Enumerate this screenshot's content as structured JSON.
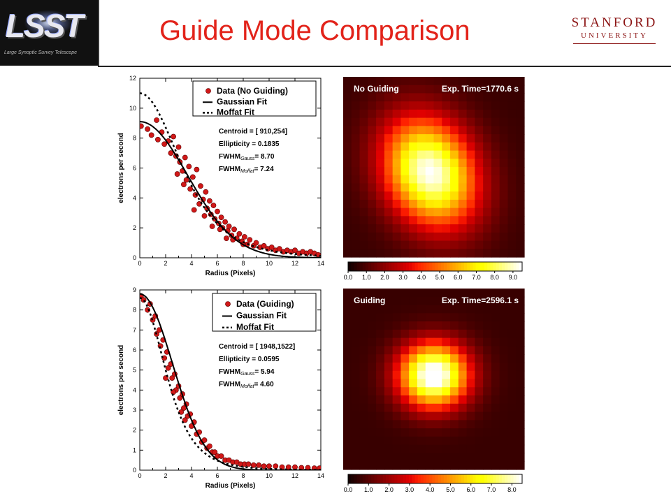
{
  "title": "Guide Mode Comparison",
  "logo": {
    "main": "LSST",
    "sub": "Large Synoptic Survey Telescope"
  },
  "university": {
    "line1": "STANFORD",
    "line2": "UNIVERSITY"
  },
  "colors": {
    "title": "#e2231a",
    "stanford": "#8c1515",
    "points": "#d01818"
  },
  "chart_data": [
    {
      "type": "scatter",
      "xlabel": "Radius (Pixels)",
      "ylabel": "electrons per second",
      "xlim": [
        0,
        14
      ],
      "ylim": [
        0,
        12
      ],
      "xticks": [
        0,
        2,
        4,
        6,
        8,
        10,
        12,
        14
      ],
      "yticks": [
        0,
        2,
        4,
        6,
        8,
        10,
        12
      ],
      "legend": [
        "Data (No Guiding)",
        "Gaussian Fit",
        "Moffat Fit"
      ],
      "legend_position": "top-right",
      "annotations": [
        {
          "label": "Centroid = [ 910,254]"
        },
        {
          "label": "Ellipticity = 0.1835"
        },
        {
          "prefix": "FWHM",
          "sub": "Gauss",
          "value": "= 8.70"
        },
        {
          "prefix": "FWHM",
          "sub": "Moffat",
          "value": "= 7.24"
        }
      ],
      "gaussian": {
        "amplitude": 9.1,
        "fwhm": 8.7
      },
      "moffat": {
        "amplitude": 11.0,
        "fwhm": 7.24,
        "beta": 2.5
      },
      "scatter_points": [
        [
          0.1,
          8.8
        ],
        [
          0.6,
          8.6
        ],
        [
          0.9,
          8.2
        ],
        [
          1.3,
          9.2
        ],
        [
          1.4,
          7.9
        ],
        [
          1.7,
          8.4
        ],
        [
          1.9,
          7.6
        ],
        [
          2.2,
          7.8
        ],
        [
          2.4,
          7.0
        ],
        [
          2.6,
          8.1
        ],
        [
          2.8,
          6.8
        ],
        [
          3.0,
          7.4
        ],
        [
          3.1,
          6.4
        ],
        [
          3.3,
          5.8
        ],
        [
          3.5,
          6.7
        ],
        [
          3.6,
          5.2
        ],
        [
          3.8,
          6.1
        ],
        [
          3.9,
          4.6
        ],
        [
          4.1,
          5.4
        ],
        [
          4.3,
          4.2
        ],
        [
          4.4,
          5.9
        ],
        [
          4.6,
          3.6
        ],
        [
          4.7,
          4.8
        ],
        [
          4.9,
          3.9
        ],
        [
          5.1,
          4.4
        ],
        [
          5.2,
          3.3
        ],
        [
          5.4,
          3.8
        ],
        [
          5.5,
          2.9
        ],
        [
          5.7,
          3.5
        ],
        [
          5.8,
          2.6
        ],
        [
          6.0,
          3.1
        ],
        [
          6.1,
          2.3
        ],
        [
          6.3,
          2.7
        ],
        [
          6.4,
          2.0
        ],
        [
          6.6,
          2.4
        ],
        [
          6.8,
          1.8
        ],
        [
          6.9,
          2.1
        ],
        [
          7.1,
          1.5
        ],
        [
          7.3,
          1.9
        ],
        [
          7.5,
          1.3
        ],
        [
          7.7,
          1.6
        ],
        [
          7.9,
          1.1
        ],
        [
          8.1,
          1.4
        ],
        [
          8.3,
          0.9
        ],
        [
          8.5,
          1.2
        ],
        [
          8.8,
          0.8
        ],
        [
          9.0,
          1.0
        ],
        [
          9.3,
          0.7
        ],
        [
          9.6,
          0.8
        ],
        [
          9.9,
          0.6
        ],
        [
          10.2,
          0.7
        ],
        [
          10.5,
          0.5
        ],
        [
          10.8,
          0.6
        ],
        [
          11.1,
          0.4
        ],
        [
          11.4,
          0.5
        ],
        [
          11.7,
          0.4
        ],
        [
          12.0,
          0.5
        ],
        [
          12.3,
          0.3
        ],
        [
          12.6,
          0.4
        ],
        [
          12.9,
          0.3
        ],
        [
          13.2,
          0.4
        ],
        [
          13.5,
          0.3
        ],
        [
          13.8,
          0.2
        ],
        [
          4.2,
          3.2
        ],
        [
          5.0,
          2.8
        ],
        [
          5.6,
          2.1
        ],
        [
          6.2,
          1.9
        ],
        [
          6.7,
          1.3
        ],
        [
          7.2,
          1.2
        ],
        [
          8.0,
          0.9
        ],
        [
          3.4,
          4.9
        ],
        [
          2.9,
          5.6
        ]
      ]
    },
    {
      "type": "scatter",
      "xlabel": "Radius (Pixels)",
      "ylabel": "electrons per second",
      "xlim": [
        0,
        14
      ],
      "ylim": [
        0,
        9
      ],
      "xticks": [
        0,
        2,
        4,
        6,
        8,
        10,
        12,
        14
      ],
      "yticks": [
        0,
        1,
        2,
        3,
        4,
        5,
        6,
        7,
        8,
        9
      ],
      "legend": [
        "Data (Guiding)",
        "Gaussian Fit",
        "Moffat Fit"
      ],
      "legend_position": "top-right",
      "annotations": [
        {
          "label": "Centroid = [ 1948,1522]"
        },
        {
          "label": "Ellipticity = 0.0595"
        },
        {
          "prefix": "FWHM",
          "sub": "Gauss",
          "value": "= 5.94"
        },
        {
          "prefix": "FWHM",
          "sub": "Moffat",
          "value": "= 4.60"
        }
      ],
      "gaussian": {
        "amplitude": 8.8,
        "fwhm": 5.94
      },
      "moffat": {
        "amplitude": 8.6,
        "fwhm": 4.6,
        "beta": 2.5
      },
      "scatter_points": [
        [
          0.1,
          8.7
        ],
        [
          0.3,
          8.5
        ],
        [
          0.6,
          8.0
        ],
        [
          0.8,
          8.3
        ],
        [
          1.0,
          7.5
        ],
        [
          1.2,
          7.7
        ],
        [
          1.3,
          6.8
        ],
        [
          1.5,
          7.0
        ],
        [
          1.6,
          6.2
        ],
        [
          1.8,
          6.5
        ],
        [
          1.9,
          5.6
        ],
        [
          2.1,
          5.9
        ],
        [
          2.2,
          5.1
        ],
        [
          2.4,
          5.3
        ],
        [
          2.5,
          4.6
        ],
        [
          2.7,
          4.8
        ],
        [
          2.8,
          4.0
        ],
        [
          3.0,
          4.2
        ],
        [
          3.1,
          3.6
        ],
        [
          3.3,
          3.8
        ],
        [
          3.4,
          3.1
        ],
        [
          3.6,
          3.3
        ],
        [
          3.7,
          2.7
        ],
        [
          3.9,
          2.8
        ],
        [
          4.0,
          2.2
        ],
        [
          4.2,
          2.4
        ],
        [
          4.4,
          1.8
        ],
        [
          4.6,
          1.9
        ],
        [
          4.8,
          1.4
        ],
        [
          5.0,
          1.5
        ],
        [
          5.2,
          1.1
        ],
        [
          5.4,
          1.2
        ],
        [
          5.6,
          0.9
        ],
        [
          5.8,
          0.9
        ],
        [
          6.0,
          0.7
        ],
        [
          6.3,
          0.7
        ],
        [
          6.6,
          0.5
        ],
        [
          6.9,
          0.5
        ],
        [
          7.2,
          0.4
        ],
        [
          7.5,
          0.4
        ],
        [
          7.8,
          0.3
        ],
        [
          8.1,
          0.3
        ],
        [
          8.4,
          0.3
        ],
        [
          8.8,
          0.25
        ],
        [
          9.2,
          0.25
        ],
        [
          9.6,
          0.2
        ],
        [
          10.0,
          0.2
        ],
        [
          10.5,
          0.2
        ],
        [
          11.0,
          0.15
        ],
        [
          11.5,
          0.15
        ],
        [
          12.0,
          0.15
        ],
        [
          12.5,
          0.12
        ],
        [
          13.0,
          0.12
        ],
        [
          13.5,
          0.1
        ],
        [
          13.9,
          0.1
        ],
        [
          2.0,
          4.6
        ],
        [
          2.6,
          3.9
        ],
        [
          3.2,
          2.9
        ],
        [
          3.5,
          2.5
        ]
      ]
    },
    {
      "type": "heatmap",
      "label_left": "No Guiding",
      "label_right": "Exp. Time=1770.6 s",
      "colorbar_ticks": [
        "0.0",
        "1.0",
        "2.0",
        "3.0",
        "4.0",
        "5.0",
        "6.0",
        "7.0",
        "8.0",
        "9.0"
      ],
      "colorbar_range": [
        0,
        9.5
      ],
      "peak": 9.1
    },
    {
      "type": "heatmap",
      "label_left": "Guiding",
      "label_right": "Exp. Time=2596.1 s",
      "colorbar_ticks": [
        "0.0",
        "1.0",
        "2.0",
        "3.0",
        "4.0",
        "5.0",
        "6.0",
        "7.0",
        "8.0"
      ],
      "colorbar_range": [
        0,
        8.5
      ],
      "peak": 8.8
    }
  ]
}
